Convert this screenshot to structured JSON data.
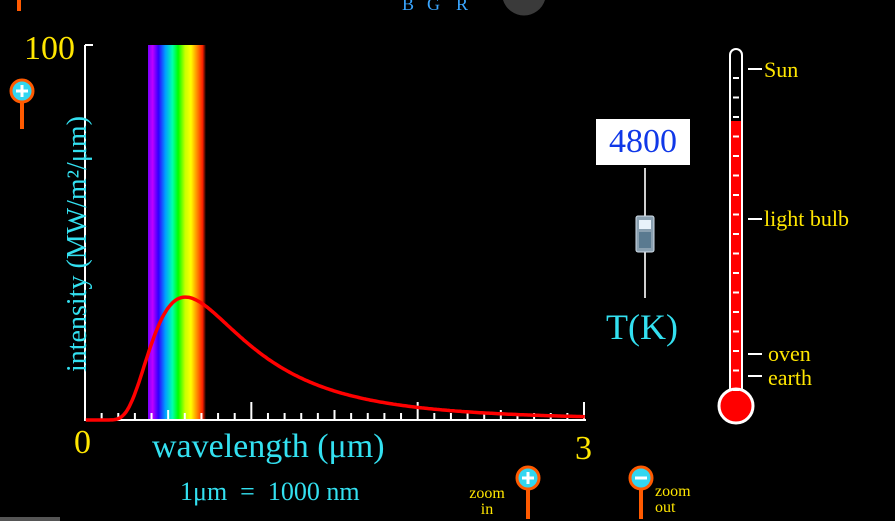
{
  "app": {
    "color_labels": [
      "B",
      "G",
      "R"
    ],
    "accent_colors": {
      "curve": "#ff0000",
      "axis_text": "#ffe600",
      "label_text": "#33e0f0",
      "temp_text": "#1038e8"
    }
  },
  "plot": {
    "y_max_label": "100",
    "y_axis_label": "intensity (MW/m²/μm)",
    "x_min_label": "0",
    "x_max_label": "3",
    "x_axis_label": "wavelength (μm)",
    "unit_note": "1μm  =  1000 nm",
    "curve_peak_fraction": 0.32
  },
  "temperature": {
    "value": "4800",
    "label": "T(K)"
  },
  "thermometer": {
    "labels": [
      "Sun",
      "light bulb",
      "oven",
      "earth"
    ]
  },
  "zoom": {
    "in_label_1": "zoom",
    "in_label_2": "in",
    "out_label_1": "zoom",
    "out_label_2": "out"
  },
  "icons": {
    "y_zoom_in": "plus-zoom-icon",
    "x_zoom_in": "plus-zoom-icon",
    "x_zoom_out": "minus-zoom-icon"
  }
}
